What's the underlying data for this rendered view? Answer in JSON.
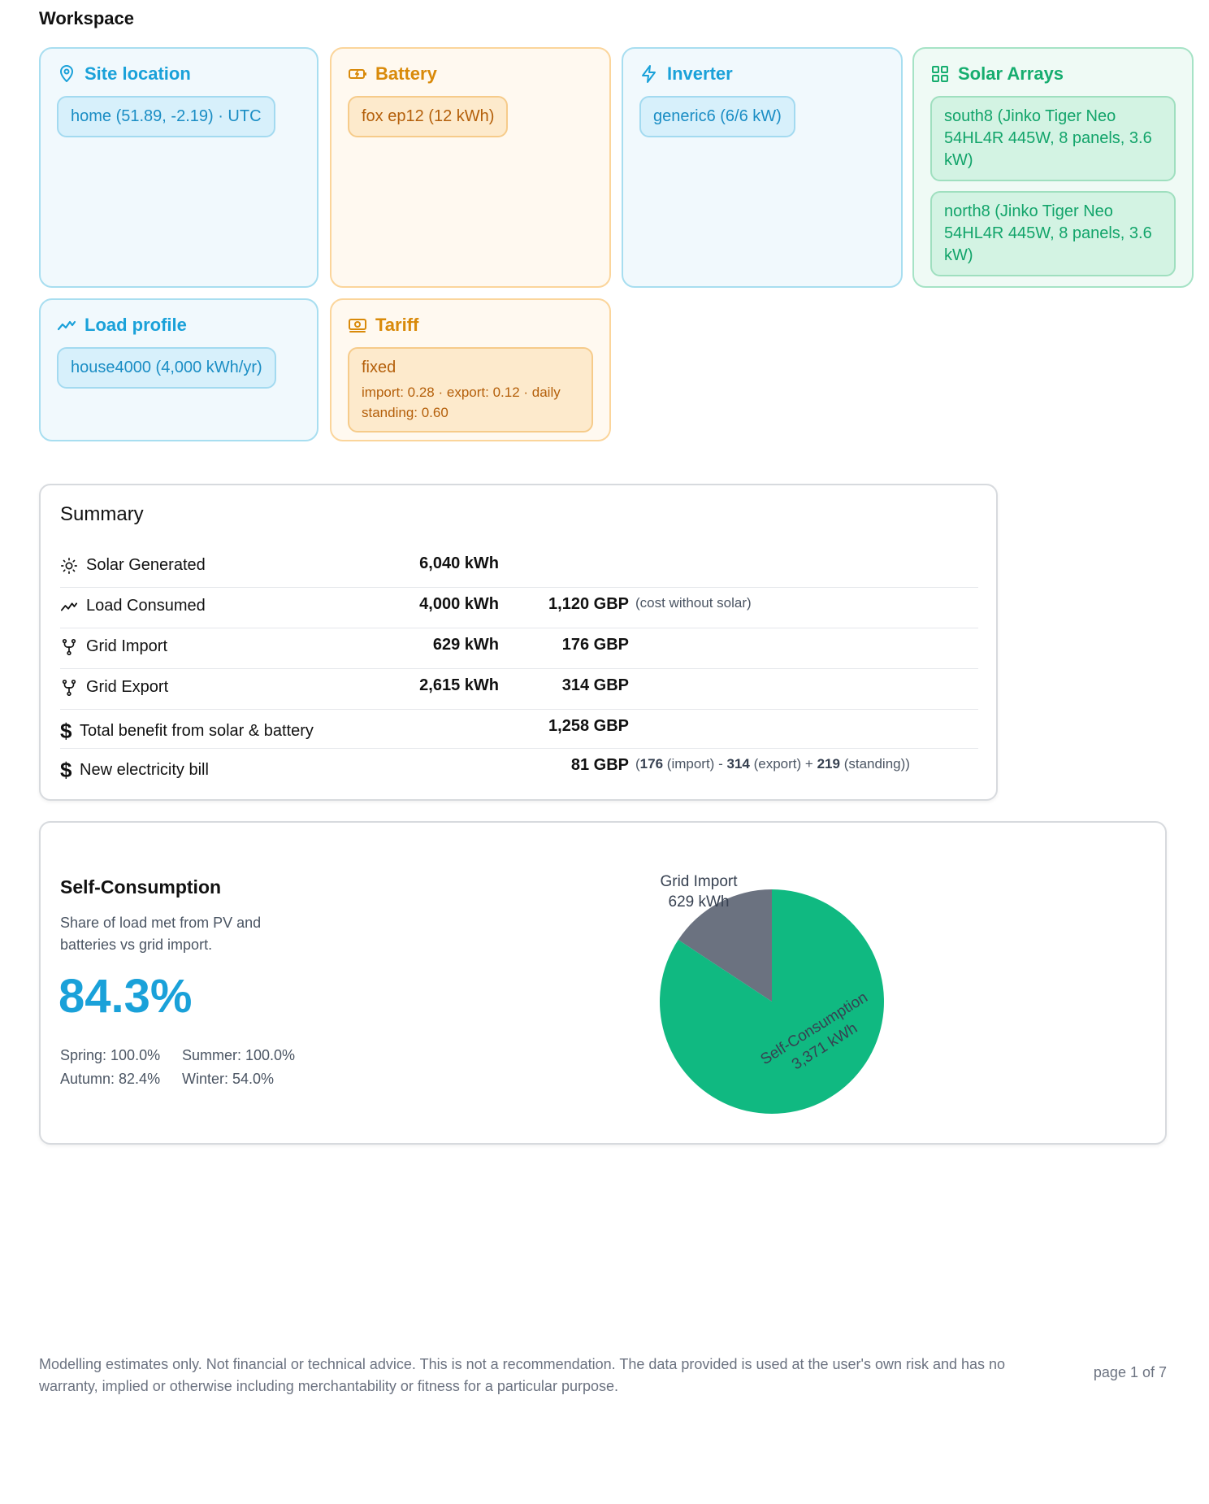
{
  "workspace": {
    "title": "Workspace"
  },
  "cards": {
    "site": {
      "title": "Site location",
      "chip": "home (51.89, -2.19) · UTC"
    },
    "battery": {
      "title": "Battery",
      "chip": "fox ep12 (12 kWh)"
    },
    "inverter": {
      "title": "Inverter",
      "chip": "generic6 (6/6 kW)"
    },
    "solar": {
      "title": "Solar Arrays",
      "chips": [
        "south8 (Jinko Tiger Neo 54HL4R 445W, 8 panels, 3.6 kW)",
        "north8 (Jinko Tiger Neo 54HL4R 445W, 8 panels, 3.6 kW)"
      ]
    },
    "load": {
      "title": "Load profile",
      "chip": "house4000 (4,000 kWh/yr)"
    },
    "tariff": {
      "title": "Tariff",
      "chip": "fixed",
      "detail": "import: 0.28 · export: 0.12 · daily standing: 0.60"
    }
  },
  "summary": {
    "title": "Summary",
    "rows": [
      {
        "label": "Solar Generated",
        "kwh": "6,040 kWh",
        "gbp": "",
        "note": ""
      },
      {
        "label": "Load Consumed",
        "kwh": "4,000 kWh",
        "gbp": "1,120 GBP",
        "note": "(cost without solar)"
      },
      {
        "label": "Grid Import",
        "kwh": "629 kWh",
        "gbp": "176 GBP",
        "note": ""
      },
      {
        "label": "Grid Export",
        "kwh": "2,615 kWh",
        "gbp": "314 GBP",
        "note": ""
      },
      {
        "label": "Total benefit from solar & battery",
        "kwh": "",
        "gbp": "1,258 GBP",
        "note": ""
      },
      {
        "label": "New electricity bill",
        "kwh": "",
        "gbp": "81 GBP",
        "note": ""
      }
    ],
    "bill_breakdown": {
      "open": "(",
      "import_val": "176",
      "import_label": "(import)",
      "minus": "-",
      "export_val": "314",
      "export_label": "(export)",
      "plus": "+",
      "standing_val": "219",
      "standing_label": "(standing)",
      "close": ")"
    },
    "dollar_sign": "$"
  },
  "self_consumption": {
    "title": "Self-Consumption",
    "description": "Share of load met from PV and batteries vs grid import.",
    "value": "84.3%",
    "seasons": [
      "Spring: 100.0%",
      "Summer: 100.0%",
      "Autumn: 82.4%",
      "Winter: 54.0%"
    ]
  },
  "chart_data": {
    "type": "pie",
    "slices": [
      {
        "label": "Self-Consumption",
        "value": 3371,
        "value_label": "3,371 kWh",
        "color": "#10b981"
      },
      {
        "label": "Grid Import",
        "value": 629,
        "value_label": "629 kWh",
        "color": "#6b7280"
      }
    ]
  },
  "footer": {
    "disclaimer": "Modelling estimates only. Not financial or technical advice. This is not a recommendation. The data provided is used at the user's own risk and has no warranty, implied or otherwise including merchantability or fitness for a particular purpose.",
    "page": "page 1 of 7"
  }
}
